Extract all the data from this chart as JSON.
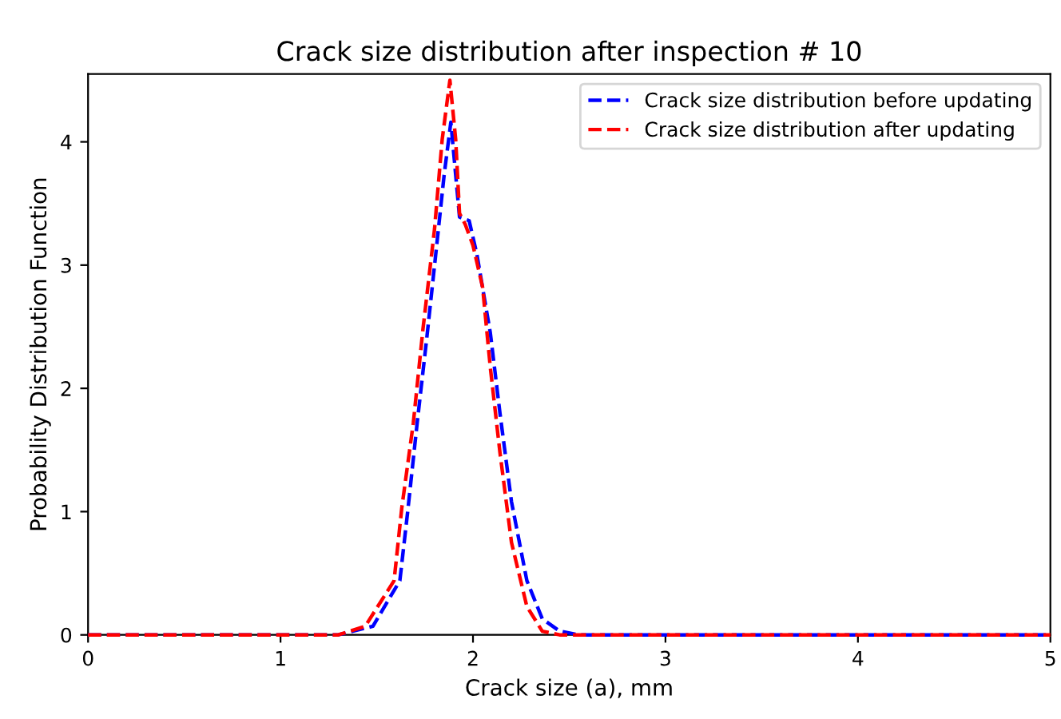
{
  "chart_data": {
    "type": "line",
    "title": "Crack size distribution after inspection # 10",
    "xlabel": "Crack size (a), mm",
    "ylabel": "Probability Distribution Function",
    "xlim": [
      0,
      5
    ],
    "ylim": [
      0,
      4.55
    ],
    "xticks": [
      0,
      1,
      2,
      3,
      4,
      5
    ],
    "yticks": [
      0,
      1,
      2,
      3,
      4
    ],
    "grid": false,
    "legend": "top right",
    "line_style": "dashed",
    "marker": "none",
    "series": [
      {
        "name": "Crack size distribution before updating",
        "color": "#0000ff",
        "x": [
          0,
          1.0,
          1.3,
          1.48,
          1.62,
          1.66,
          1.71,
          1.76,
          1.81,
          1.85,
          1.885,
          1.93,
          1.98,
          2.02,
          2.09,
          2.14,
          2.2,
          2.28,
          2.36,
          2.45,
          2.55,
          3,
          4,
          5
        ],
        "values": [
          0,
          0,
          0,
          0.07,
          0.44,
          0.99,
          1.72,
          2.41,
          3.14,
          3.73,
          4.16,
          3.39,
          3.36,
          3.09,
          2.45,
          1.8,
          1.08,
          0.44,
          0.13,
          0.03,
          0,
          0,
          0,
          0
        ]
      },
      {
        "name": "Crack size distribution after updating",
        "color": "#ff0000",
        "x": [
          0,
          1.0,
          1.3,
          1.44,
          1.59,
          1.63,
          1.69,
          1.74,
          1.8,
          1.84,
          1.88,
          1.91,
          1.93,
          1.96,
          2.0,
          2.05,
          2.09,
          2.14,
          2.2,
          2.28,
          2.36,
          2.45,
          3,
          4,
          5
        ],
        "values": [
          0,
          0,
          0,
          0.07,
          0.44,
          1.03,
          1.72,
          2.48,
          3.29,
          4.02,
          4.5,
          4.02,
          3.42,
          3.33,
          3.16,
          2.82,
          2.17,
          1.48,
          0.75,
          0.23,
          0.03,
          0,
          0,
          0,
          0
        ]
      }
    ]
  }
}
